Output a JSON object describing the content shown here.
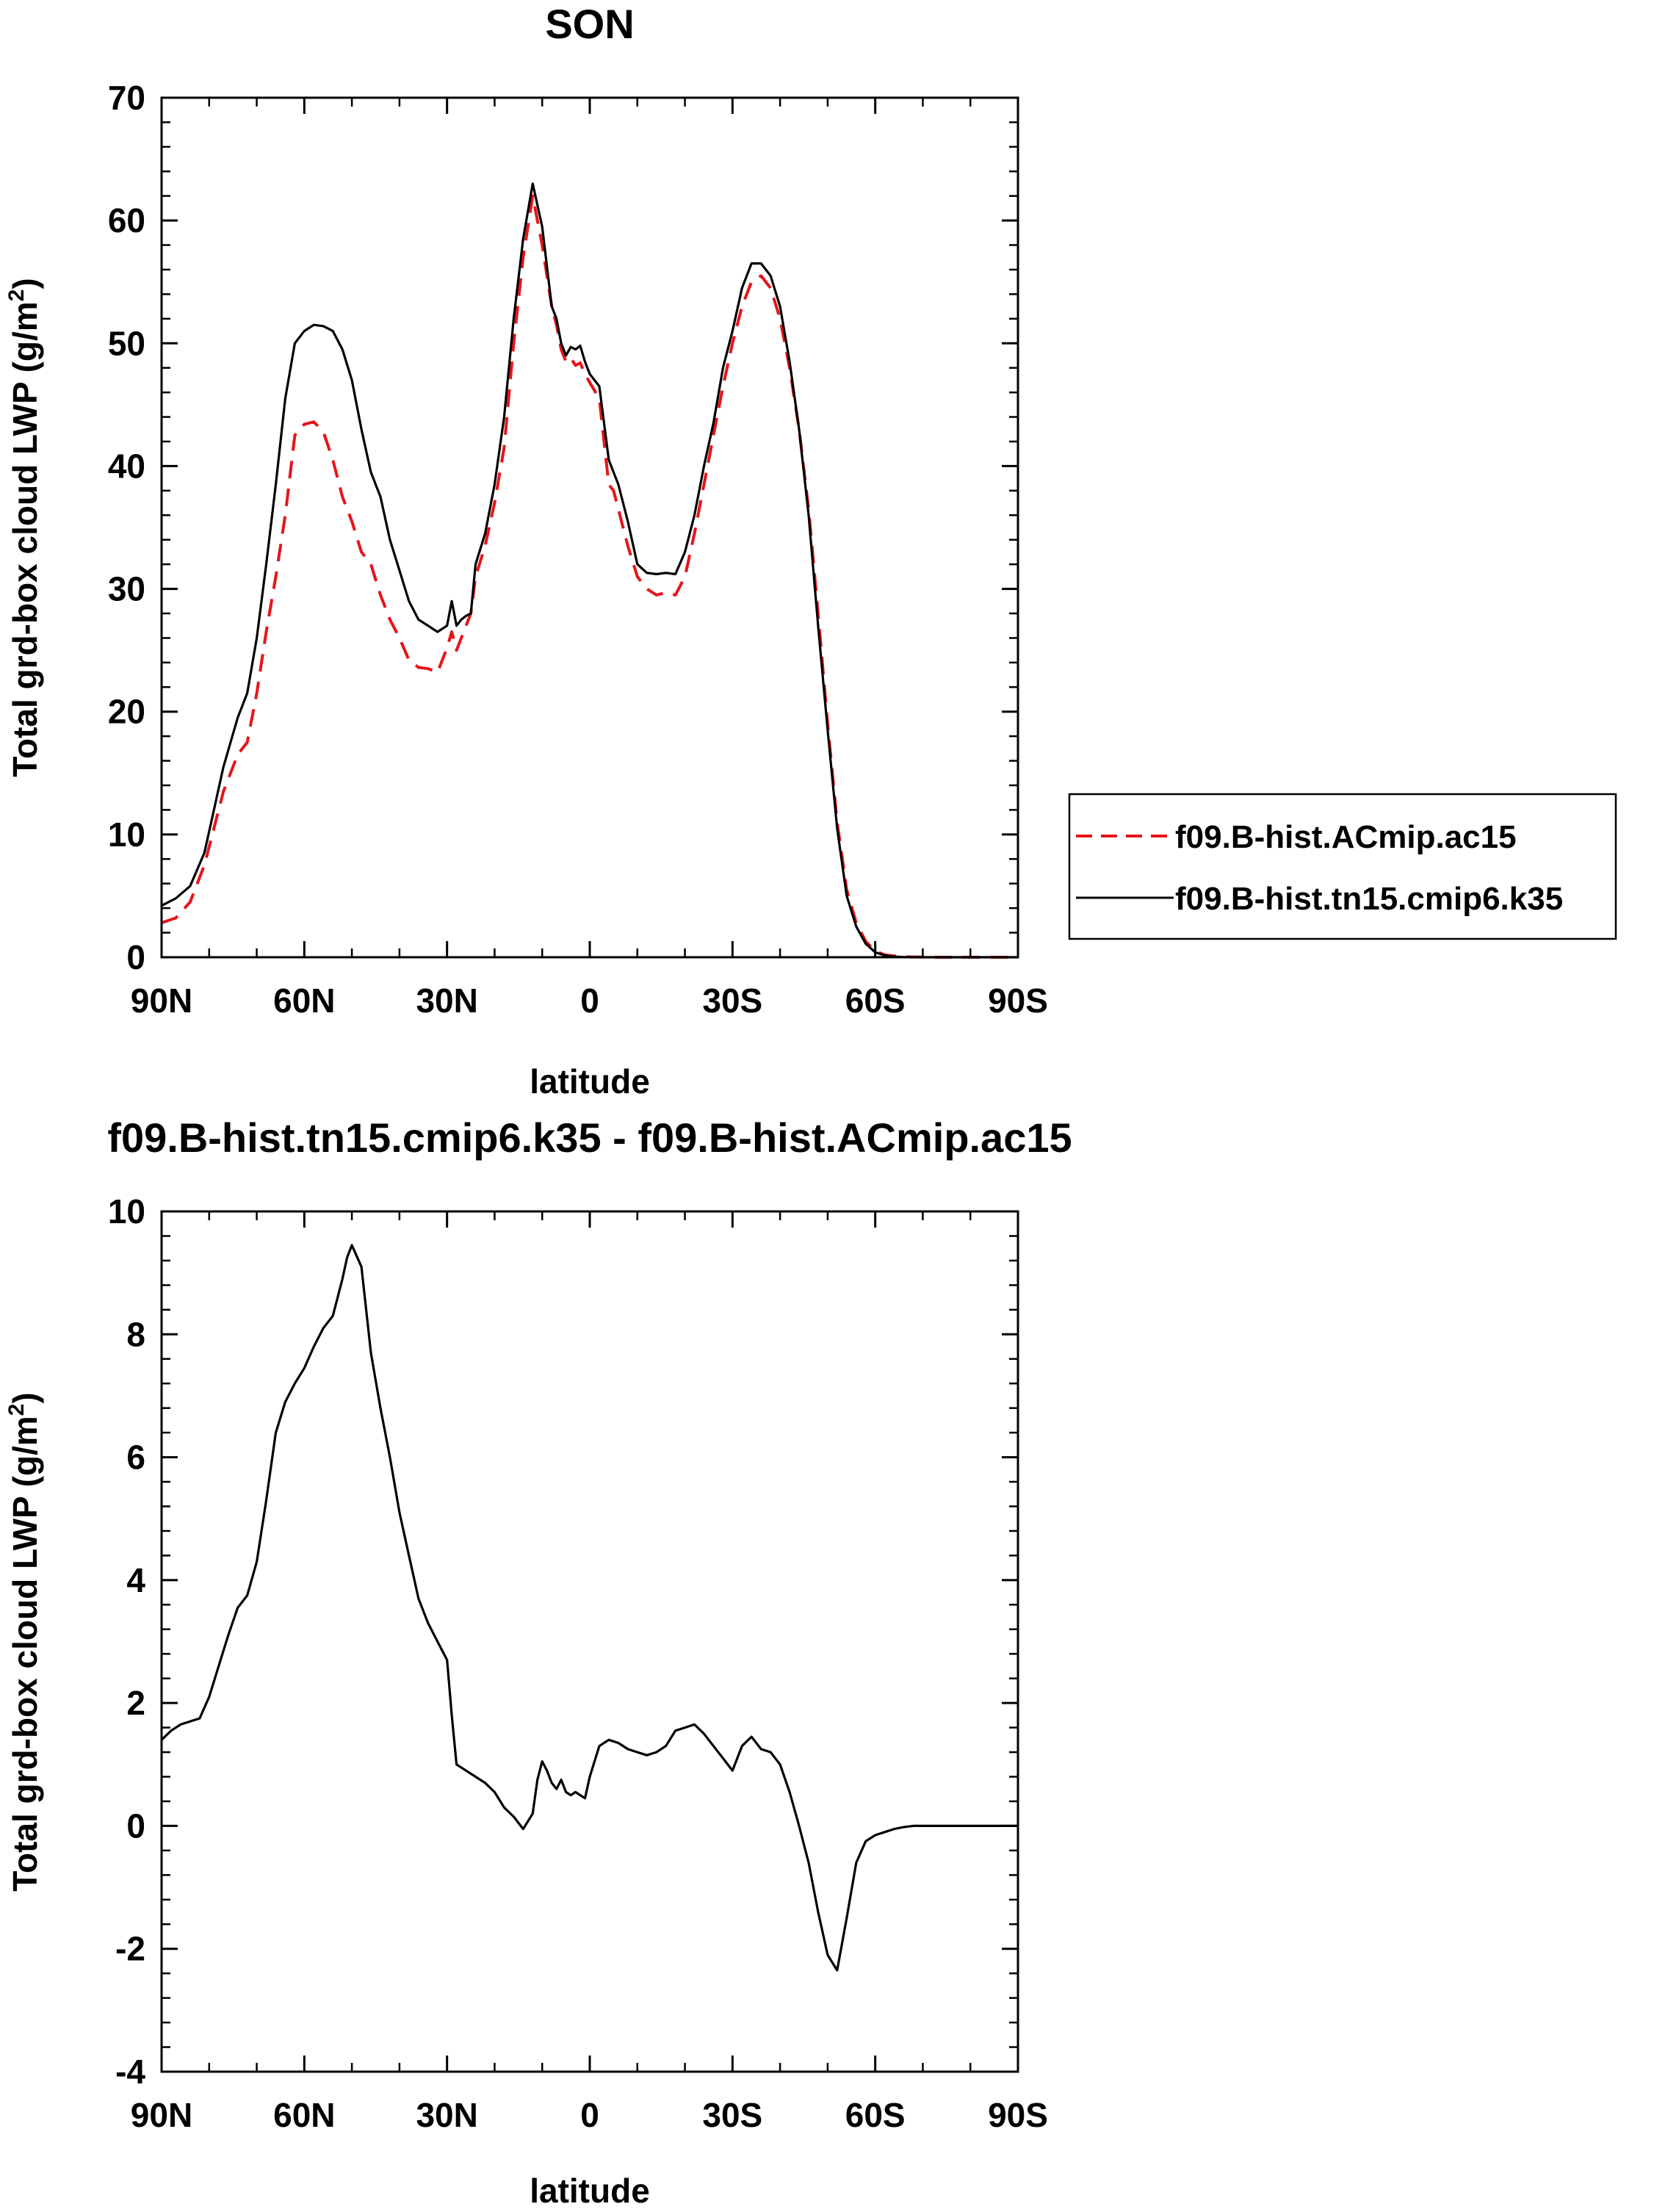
{
  "chart_data": [
    {
      "type": "line",
      "title": "SON",
      "xlabel": "latitude",
      "ylabel": "Total grd-box cloud LWP (g/m",
      "ylabel_superscript": "2",
      "ylabel_suffix": ")",
      "xlim": [
        90,
        -90
      ],
      "ylim": [
        0,
        70
      ],
      "x_tick_values": [
        90,
        60,
        30,
        0,
        -30,
        -60,
        -90
      ],
      "x_tick_labels": [
        "90N",
        "60N",
        "30N",
        "0",
        "30S",
        "60S",
        "90S"
      ],
      "y_tick_values": [
        0,
        10,
        20,
        30,
        40,
        50,
        60,
        70
      ],
      "y_tick_labels": [
        "0",
        "10",
        "20",
        "30",
        "40",
        "50",
        "60",
        "70"
      ],
      "legend": {
        "placement": "right",
        "entries": [
          "f09.B-hist.ACmip.ac15",
          "f09.B-hist.tn15.cmip6.k35"
        ]
      },
      "series": [
        {
          "name": "f09.B-hist.ACmip.ac15",
          "color": "#e8141a",
          "dash": "dashed",
          "x": [
            90,
            87,
            84,
            81,
            79,
            77,
            74,
            72,
            70,
            68,
            66,
            64,
            62,
            60,
            58,
            56,
            54,
            52,
            50,
            48,
            46,
            44,
            42,
            40,
            38,
            36,
            34,
            32,
            30,
            29,
            28,
            27,
            26,
            25,
            24,
            22,
            20,
            18,
            16,
            14,
            12,
            10,
            8,
            7,
            6,
            5,
            4,
            3,
            2,
            1,
            0,
            -2,
            -4,
            -5,
            -6,
            -8,
            -10,
            -12,
            -14,
            -16,
            -18,
            -20,
            -22,
            -24,
            -26,
            -28,
            -30,
            -32,
            -34,
            -36,
            -38,
            -40,
            -42,
            -44,
            -46,
            -48,
            -50,
            -52,
            -54,
            -56,
            -58,
            -60,
            -62,
            -64,
            -66,
            -68,
            -70,
            -72,
            -74,
            -76,
            -80,
            -85,
            -90
          ],
          "values": [
            2.8,
            3.2,
            4.5,
            7.5,
            10.5,
            13.5,
            16.5,
            17.5,
            21.5,
            26.5,
            31.0,
            36.0,
            42.5,
            43.4,
            43.6,
            42.8,
            40.5,
            37.5,
            35.5,
            33.0,
            32.0,
            29.5,
            27.5,
            26.0,
            24.2,
            23.6,
            23.5,
            23.2,
            25.2,
            26.5,
            25.0,
            26.0,
            27.0,
            28.0,
            31.0,
            33.5,
            37.0,
            41.5,
            50.0,
            57.0,
            62.0,
            58.0,
            53.0,
            51.5,
            49.5,
            48.5,
            48.8,
            48.2,
            48.4,
            47.5,
            46.8,
            45.5,
            38.5,
            38.0,
            36.5,
            33.5,
            31.0,
            30.0,
            29.5,
            29.7,
            29.5,
            31.0,
            34.5,
            38.5,
            42.5,
            46.5,
            50.0,
            53.0,
            55.0,
            55.5,
            54.5,
            52.0,
            48.0,
            43.0,
            36.5,
            28.0,
            19.0,
            11.0,
            5.5,
            2.8,
            1.3,
            0.5,
            0.2,
            0.1,
            0.05,
            0.02,
            0.01,
            0,
            0,
            0,
            0,
            0,
            0
          ]
        },
        {
          "name": "f09.B-hist.tn15.cmip6.k35",
          "color": "#000000",
          "dash": "solid",
          "x": [
            90,
            87,
            84,
            81,
            79,
            77,
            74,
            72,
            70,
            68,
            66,
            64,
            62,
            60,
            58,
            56,
            54,
            52,
            50,
            48,
            46,
            44,
            42,
            40,
            38,
            36,
            34,
            32,
            30,
            29,
            28,
            27,
            26,
            25,
            24,
            22,
            20,
            18,
            16,
            14,
            12,
            10,
            8,
            7,
            6,
            5,
            4,
            3,
            2,
            1,
            0,
            -2,
            -4,
            -5,
            -6,
            -8,
            -10,
            -12,
            -14,
            -16,
            -18,
            -20,
            -22,
            -24,
            -26,
            -28,
            -30,
            -32,
            -34,
            -36,
            -38,
            -40,
            -42,
            -44,
            -46,
            -48,
            -50,
            -52,
            -54,
            -56,
            -58,
            -60,
            -62,
            -64,
            -66,
            -68,
            -70,
            -72,
            -74,
            -76,
            -80,
            -85,
            -90
          ],
          "values": [
            4.2,
            4.8,
            5.8,
            8.5,
            12.0,
            15.5,
            19.5,
            21.5,
            26.0,
            32.0,
            38.5,
            45.5,
            50.0,
            51.0,
            51.5,
            51.4,
            51.0,
            49.5,
            47.0,
            43.0,
            39.5,
            37.5,
            34.0,
            31.5,
            29.0,
            27.5,
            27.0,
            26.5,
            27.0,
            29.0,
            27.0,
            27.5,
            27.8,
            28.0,
            32.0,
            34.5,
            38.5,
            44.0,
            52.0,
            58.5,
            63.0,
            59.5,
            53.0,
            52.0,
            50.0,
            49.0,
            49.7,
            49.5,
            49.8,
            48.5,
            47.5,
            46.5,
            40.5,
            39.5,
            38.5,
            35.5,
            32.0,
            31.3,
            31.2,
            31.3,
            31.2,
            33.0,
            36.0,
            40.0,
            43.5,
            48.0,
            51.0,
            54.5,
            56.5,
            56.5,
            55.5,
            53.0,
            48.5,
            43.0,
            36.0,
            27.0,
            18.5,
            10.5,
            5.0,
            2.5,
            1.1,
            0.4,
            0.15,
            0.05,
            0.02,
            0.01,
            0,
            0,
            0,
            0,
            0,
            0,
            0
          ]
        }
      ]
    },
    {
      "type": "line",
      "title": "f09.B-hist.tn15.cmip6.k35 - f09.B-hist.ACmip.ac15",
      "xlabel": "latitude",
      "ylabel": "Total grd-box cloud LWP (g/m",
      "ylabel_superscript": "2",
      "ylabel_suffix": ")",
      "xlim": [
        90,
        -90
      ],
      "ylim": [
        -4,
        10
      ],
      "x_tick_values": [
        90,
        60,
        30,
        0,
        -30,
        -60,
        -90
      ],
      "x_tick_labels": [
        "90N",
        "60N",
        "30N",
        "0",
        "30S",
        "60S",
        "90S"
      ],
      "y_tick_values": [
        -4,
        -2,
        0,
        2,
        4,
        6,
        8,
        10
      ],
      "y_tick_labels": [
        "-4",
        "-2",
        "0",
        "2",
        "4",
        "6",
        "8",
        "10"
      ],
      "series": [
        {
          "color": "#000000",
          "dash": "solid",
          "x": [
            90,
            88,
            86,
            84,
            82,
            80,
            78,
            76,
            74,
            72,
            70,
            68,
            66,
            64,
            62,
            60,
            58,
            56,
            54,
            52,
            51,
            50,
            48,
            46,
            44,
            42,
            40,
            38,
            36,
            34,
            32,
            30,
            29,
            28,
            26,
            24,
            22,
            20,
            18,
            16,
            14,
            12,
            11,
            10,
            9,
            8,
            7,
            6,
            5,
            4,
            3,
            2,
            1,
            0,
            -2,
            -4,
            -6,
            -8,
            -10,
            -12,
            -14,
            -16,
            -18,
            -20,
            -22,
            -24,
            -26,
            -28,
            -30,
            -32,
            -34,
            -36,
            -38,
            -40,
            -42,
            -44,
            -46,
            -48,
            -50,
            -52,
            -54,
            -56,
            -58,
            -60,
            -62,
            -64,
            -66,
            -68,
            -70,
            -72,
            -75,
            -80,
            -85,
            -90
          ],
          "values": [
            1.4,
            1.55,
            1.65,
            1.7,
            1.75,
            2.1,
            2.6,
            3.1,
            3.55,
            3.75,
            4.3,
            5.3,
            6.4,
            6.9,
            7.2,
            7.45,
            7.8,
            8.1,
            8.3,
            8.9,
            9.25,
            9.45,
            9.1,
            7.7,
            6.8,
            6.0,
            5.1,
            4.4,
            3.7,
            3.3,
            3.0,
            2.7,
            1.8,
            1.0,
            0.9,
            0.8,
            0.7,
            0.55,
            0.3,
            0.15,
            -0.05,
            0.2,
            0.75,
            1.05,
            0.9,
            0.7,
            0.6,
            0.75,
            0.55,
            0.5,
            0.55,
            0.5,
            0.45,
            0.8,
            1.3,
            1.4,
            1.35,
            1.25,
            1.2,
            1.15,
            1.2,
            1.3,
            1.55,
            1.6,
            1.65,
            1.5,
            1.3,
            1.1,
            0.9,
            1.3,
            1.45,
            1.25,
            1.2,
            1.0,
            0.55,
            0.0,
            -0.6,
            -1.4,
            -2.1,
            -2.35,
            -1.5,
            -0.6,
            -0.25,
            -0.15,
            -0.1,
            -0.05,
            -0.02,
            0.0,
            0.0,
            0.0,
            0.0,
            0.0,
            0.0,
            0.0
          ]
        }
      ]
    }
  ]
}
